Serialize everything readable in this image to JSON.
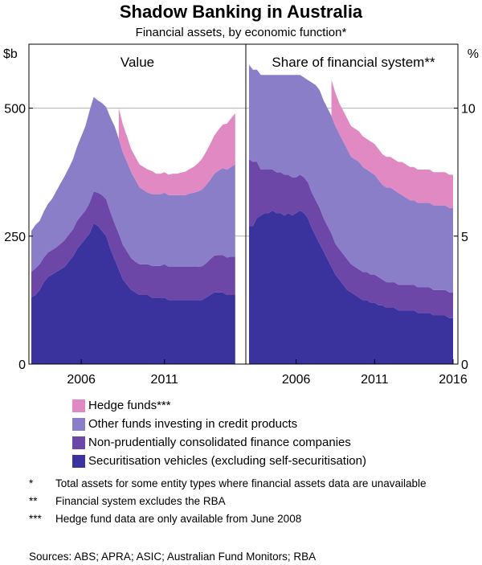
{
  "title": "Shadow Banking in Australia",
  "subtitle": "Financial assets, by economic function*",
  "colors": {
    "hedge": "#e189c2",
    "other_funds": "#8b7ec9",
    "nonprudential": "#6c47a8",
    "securitisation": "#3a339e",
    "frame": "#000000",
    "grid": "#b3b3b3"
  },
  "chart_data": [
    {
      "type": "area",
      "stacked": true,
      "title": "Value",
      "ylabel": "$b",
      "ylim": [
        0,
        625
      ],
      "yticks": [
        0,
        250,
        500
      ],
      "xlim": [
        2003,
        2015.5
      ],
      "xticks": [
        2006,
        2011
      ],
      "xtick_labels": [
        "2006",
        "2011"
      ],
      "x": [
        2003.0,
        2003.25,
        2003.5,
        2003.75,
        2004.0,
        2004.25,
        2004.5,
        2004.75,
        2005.0,
        2005.25,
        2005.5,
        2005.75,
        2006.0,
        2006.25,
        2006.5,
        2006.75,
        2007.0,
        2007.25,
        2007.5,
        2007.75,
        2008.0,
        2008.25,
        2008.5,
        2008.75,
        2009.0,
        2009.25,
        2009.5,
        2009.75,
        2010.0,
        2010.25,
        2010.5,
        2010.75,
        2011.0,
        2011.25,
        2011.5,
        2011.75,
        2012.0,
        2012.25,
        2012.5,
        2012.75,
        2013.0,
        2013.25,
        2013.5,
        2013.75,
        2014.0,
        2014.25,
        2014.5,
        2014.75,
        2015.0,
        2015.25
      ],
      "series": [
        {
          "name": "Securitisation vehicles (excluding self-securitisation)",
          "color_key": "securitisation",
          "values": [
            130,
            135,
            145,
            160,
            170,
            175,
            180,
            185,
            190,
            200,
            210,
            225,
            235,
            245,
            255,
            275,
            270,
            260,
            250,
            225,
            205,
            185,
            165,
            155,
            145,
            140,
            135,
            135,
            135,
            130,
            130,
            130,
            130,
            125,
            125,
            125,
            125,
            125,
            125,
            125,
            125,
            125,
            130,
            135,
            140,
            140,
            140,
            135,
            135,
            135
          ]
        },
        {
          "name": "Non-prudentially consolidated finance companies",
          "color_key": "nonprudential",
          "values": [
            50,
            52,
            50,
            48,
            48,
            48,
            48,
            50,
            52,
            53,
            53,
            55,
            55,
            55,
            60,
            62,
            65,
            70,
            72,
            72,
            70,
            70,
            68,
            65,
            62,
            60,
            60,
            60,
            60,
            62,
            62,
            62,
            65,
            65,
            65,
            65,
            65,
            65,
            65,
            65,
            65,
            66,
            67,
            70,
            72,
            73,
            73,
            73,
            75,
            75
          ]
        },
        {
          "name": "Other funds investing in credit products",
          "color_key": "other_funds",
          "values": [
            80,
            85,
            85,
            90,
            95,
            100,
            110,
            118,
            125,
            130,
            137,
            145,
            155,
            165,
            180,
            185,
            180,
            180,
            180,
            185,
            190,
            185,
            180,
            175,
            168,
            160,
            150,
            145,
            140,
            140,
            140,
            140,
            140,
            140,
            140,
            140,
            140,
            140,
            143,
            145,
            147,
            150,
            153,
            155,
            160,
            165,
            170,
            172,
            175,
            180
          ]
        },
        {
          "name": "Hedge funds***",
          "color_key": "hedge",
          "start_index": 21,
          "values": [
            null,
            null,
            null,
            null,
            null,
            null,
            null,
            null,
            null,
            null,
            null,
            null,
            null,
            null,
            null,
            null,
            null,
            null,
            null,
            null,
            null,
            60,
            55,
            50,
            45,
            45,
            45,
            45,
            45,
            45,
            40,
            40,
            40,
            40,
            42,
            42,
            44,
            46,
            48,
            50,
            55,
            60,
            65,
            70,
            75,
            80,
            85,
            90,
            95,
            100
          ]
        }
      ]
    },
    {
      "type": "area",
      "stacked": true,
      "title": "Share of financial system**",
      "ylabel": "%",
      "ylim": [
        0,
        12.5
      ],
      "yticks": [
        0,
        5,
        10
      ],
      "xlim": [
        2003,
        2016
      ],
      "xticks": [
        2006,
        2011,
        2016
      ],
      "xtick_labels": [
        "2006",
        "2011",
        "2016"
      ],
      "x": [
        2003.0,
        2003.25,
        2003.5,
        2003.75,
        2004.0,
        2004.25,
        2004.5,
        2004.75,
        2005.0,
        2005.25,
        2005.5,
        2005.75,
        2006.0,
        2006.25,
        2006.5,
        2006.75,
        2007.0,
        2007.25,
        2007.5,
        2007.75,
        2008.0,
        2008.25,
        2008.5,
        2008.75,
        2009.0,
        2009.25,
        2009.5,
        2009.75,
        2010.0,
        2010.25,
        2010.5,
        2010.75,
        2011.0,
        2011.25,
        2011.5,
        2011.75,
        2012.0,
        2012.25,
        2012.5,
        2012.75,
        2013.0,
        2013.25,
        2013.5,
        2013.75,
        2014.0,
        2014.25,
        2014.5,
        2014.75,
        2015.0,
        2015.25,
        2015.5,
        2015.75,
        2016.0
      ],
      "series": [
        {
          "name": "Securitisation vehicles (excluding self-securitisation)",
          "color_key": "securitisation",
          "values": [
            5.4,
            5.4,
            5.7,
            5.8,
            5.9,
            5.9,
            6.0,
            5.9,
            5.9,
            5.8,
            5.9,
            5.8,
            5.9,
            6.0,
            5.9,
            5.7,
            5.3,
            5.0,
            4.7,
            4.4,
            4.1,
            3.8,
            3.5,
            3.3,
            3.1,
            2.9,
            2.8,
            2.7,
            2.6,
            2.5,
            2.5,
            2.4,
            2.4,
            2.3,
            2.3,
            2.2,
            2.2,
            2.2,
            2.1,
            2.1,
            2.1,
            2.1,
            2.1,
            2.0,
            2.0,
            2.0,
            2.0,
            1.9,
            1.9,
            1.9,
            1.9,
            1.8,
            1.8
          ]
        },
        {
          "name": "Non-prudentially consolidated finance companies",
          "color_key": "nonprudential",
          "values": [
            2.6,
            2.5,
            2.2,
            1.8,
            1.7,
            1.7,
            1.6,
            1.6,
            1.6,
            1.6,
            1.5,
            1.5,
            1.4,
            1.4,
            1.4,
            1.4,
            1.4,
            1.4,
            1.4,
            1.3,
            1.3,
            1.3,
            1.2,
            1.2,
            1.2,
            1.2,
            1.1,
            1.1,
            1.1,
            1.1,
            1.1,
            1.1,
            1.1,
            1.1,
            1.0,
            1.0,
            1.0,
            1.0,
            1.0,
            1.0,
            1.0,
            1.0,
            1.0,
            1.0,
            1.0,
            1.0,
            1.0,
            1.0,
            1.0,
            1.0,
            1.0,
            1.0,
            1.0
          ]
        },
        {
          "name": "Other funds investing in credit products",
          "color_key": "other_funds",
          "values": [
            3.7,
            3.6,
            3.6,
            3.7,
            3.7,
            3.7,
            3.7,
            3.8,
            3.8,
            3.9,
            3.9,
            4.0,
            4.0,
            3.9,
            3.9,
            4.0,
            4.3,
            4.5,
            4.6,
            4.6,
            4.6,
            4.6,
            4.6,
            4.5,
            4.4,
            4.3,
            4.2,
            4.2,
            4.2,
            4.1,
            4.0,
            4.0,
            3.9,
            3.8,
            3.7,
            3.7,
            3.7,
            3.6,
            3.6,
            3.5,
            3.4,
            3.3,
            3.3,
            3.3,
            3.3,
            3.3,
            3.3,
            3.3,
            3.3,
            3.3,
            3.3,
            3.3,
            3.3
          ]
        },
        {
          "name": "Hedge funds***",
          "color_key": "hedge",
          "start_index": 21,
          "values": [
            null,
            null,
            null,
            null,
            null,
            null,
            null,
            null,
            null,
            null,
            null,
            null,
            null,
            null,
            null,
            null,
            null,
            null,
            null,
            null,
            null,
            1.4,
            1.3,
            1.2,
            1.2,
            1.2,
            1.2,
            1.2,
            1.2,
            1.2,
            1.2,
            1.2,
            1.2,
            1.2,
            1.2,
            1.2,
            1.2,
            1.2,
            1.2,
            1.3,
            1.3,
            1.3,
            1.3,
            1.3,
            1.3,
            1.3,
            1.3,
            1.3,
            1.3,
            1.3,
            1.3,
            1.3,
            1.3
          ]
        }
      ]
    }
  ],
  "legend": [
    {
      "label": "Hedge funds***",
      "color_key": "hedge"
    },
    {
      "label": "Other funds investing in credit products",
      "color_key": "other_funds"
    },
    {
      "label": "Non-prudentially consolidated finance companies",
      "color_key": "nonprudential"
    },
    {
      "label": "Securitisation vehicles (excluding self-securitisation)",
      "color_key": "securitisation"
    }
  ],
  "notes": [
    {
      "mark": "*",
      "text": "Total assets for some entity types where financial assets data are unavailable"
    },
    {
      "mark": "**",
      "text": "Financial system excludes the RBA"
    },
    {
      "mark": "***",
      "text": "Hedge fund data are only available from June 2008"
    }
  ],
  "sources": "Sources:  ABS; APRA; ASIC; Australian Fund Monitors; RBA"
}
